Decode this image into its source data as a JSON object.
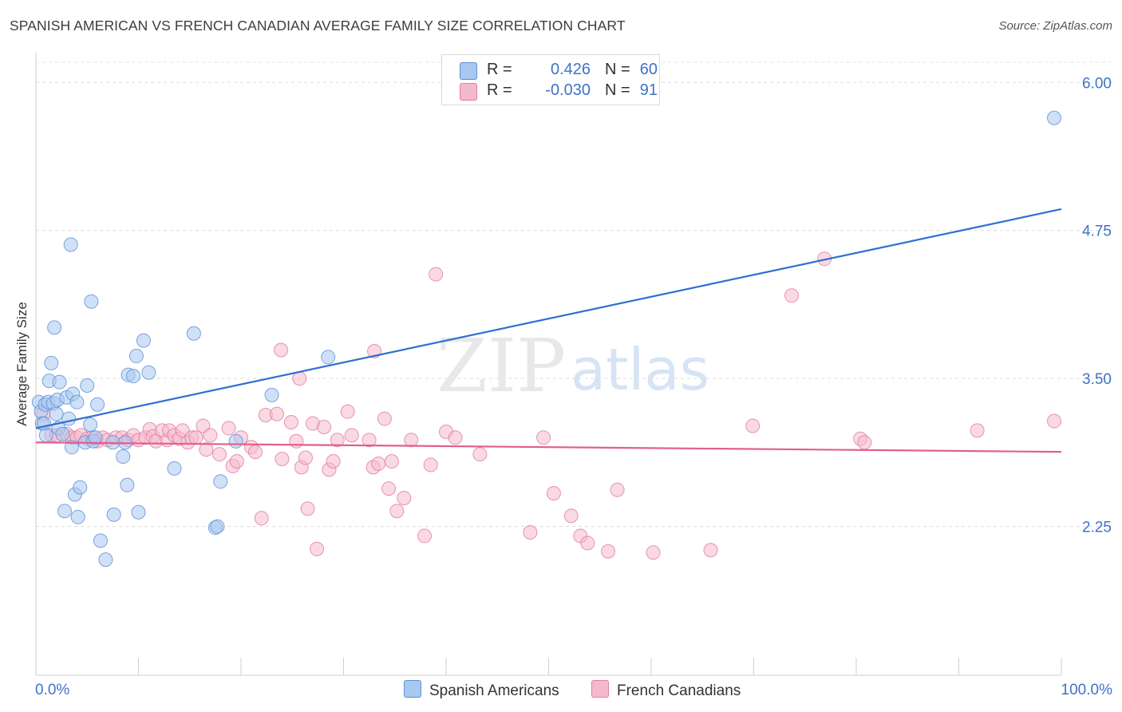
{
  "header": {
    "title": "SPANISH AMERICAN VS FRENCH CANADIAN AVERAGE FAMILY SIZE CORRELATION CHART",
    "source": "Source: ZipAtlas.com"
  },
  "watermark": {
    "zip": "ZIP",
    "atlas": "atlas"
  },
  "legend": {
    "r_label": "R =",
    "n_label": "N =",
    "rows": [
      {
        "r": "0.426",
        "n": "60",
        "color": "#a9c8f0"
      },
      {
        "r": "-0.030",
        "n": "91",
        "color": "#f5b9cc"
      }
    ]
  },
  "chart_data": {
    "type": "scatter",
    "title": "SPANISH AMERICAN VS FRENCH CANADIAN AVERAGE FAMILY SIZE CORRELATION CHART",
    "xlabel": "",
    "ylabel": "Average Family Size",
    "xlim": [
      0,
      100
    ],
    "ylim": [
      1.0,
      6.15
    ],
    "x_tick_labels": [
      "0.0%",
      "100.0%"
    ],
    "y_ticks": [
      2.25,
      3.5,
      4.75,
      6.0
    ],
    "y_tick_labels": [
      "2.25",
      "3.50",
      "4.75",
      "6.00"
    ],
    "grid": true,
    "legend_position": "top-center",
    "series": [
      {
        "name": "Spanish Americans",
        "color": "#5b8fd8",
        "fill": "#a9c8f0",
        "trend": {
          "x": [
            0,
            100
          ],
          "y": [
            3.08,
            4.93
          ]
        },
        "points": [
          [
            0.3,
            3.3
          ],
          [
            0.5,
            3.22
          ],
          [
            0.6,
            3.12
          ],
          [
            0.8,
            3.12
          ],
          [
            0.9,
            3.28
          ],
          [
            1.0,
            3.02
          ],
          [
            1.2,
            3.3
          ],
          [
            1.3,
            3.48
          ],
          [
            1.5,
            3.63
          ],
          [
            1.7,
            3.29
          ],
          [
            1.8,
            3.93
          ],
          [
            2.0,
            3.2
          ],
          [
            2.1,
            3.32
          ],
          [
            2.2,
            3.08
          ],
          [
            2.3,
            3.47
          ],
          [
            2.6,
            3.03
          ],
          [
            2.8,
            2.38
          ],
          [
            3.0,
            3.34
          ],
          [
            3.2,
            3.16
          ],
          [
            3.4,
            4.63
          ],
          [
            3.5,
            2.92
          ],
          [
            3.6,
            3.37
          ],
          [
            3.8,
            2.52
          ],
          [
            4.0,
            3.3
          ],
          [
            4.1,
            2.33
          ],
          [
            4.3,
            2.58
          ],
          [
            4.8,
            2.96
          ],
          [
            5.0,
            3.44
          ],
          [
            5.3,
            3.11
          ],
          [
            5.4,
            4.15
          ],
          [
            5.6,
            2.97
          ],
          [
            5.8,
            3.0
          ],
          [
            6.0,
            3.28
          ],
          [
            6.3,
            2.13
          ],
          [
            6.8,
            1.97
          ],
          [
            7.5,
            2.96
          ],
          [
            7.6,
            2.35
          ],
          [
            8.5,
            2.84
          ],
          [
            8.7,
            2.96
          ],
          [
            8.9,
            2.6
          ],
          [
            9.0,
            3.53
          ],
          [
            9.5,
            3.52
          ],
          [
            9.8,
            3.69
          ],
          [
            10.0,
            2.37
          ],
          [
            10.5,
            3.82
          ],
          [
            11.0,
            3.55
          ],
          [
            13.5,
            2.74
          ],
          [
            15.4,
            3.88
          ],
          [
            17.5,
            2.24
          ],
          [
            17.7,
            2.25
          ],
          [
            18.0,
            2.63
          ],
          [
            19.5,
            2.97
          ],
          [
            23.0,
            3.36
          ],
          [
            28.5,
            3.68
          ],
          [
            99.3,
            5.7
          ]
        ]
      },
      {
        "name": "French Canadians",
        "color": "#e07ca0",
        "fill": "#f5b9cc",
        "trend": {
          "x": [
            0,
            100
          ],
          "y": [
            2.96,
            2.88
          ]
        },
        "points": [
          [
            0.7,
            3.2
          ],
          [
            1.5,
            3.02
          ],
          [
            2.0,
            3.02
          ],
          [
            3.0,
            3.03
          ],
          [
            3.5,
            3.0
          ],
          [
            4.0,
            3.0
          ],
          [
            4.4,
            3.02
          ],
          [
            5.0,
            2.99
          ],
          [
            5.5,
            3.0
          ],
          [
            6.0,
            2.97
          ],
          [
            6.5,
            3.0
          ],
          [
            7.0,
            2.98
          ],
          [
            7.8,
            3.0
          ],
          [
            8.4,
            3.0
          ],
          [
            9.0,
            2.98
          ],
          [
            9.5,
            3.02
          ],
          [
            10.0,
            2.98
          ],
          [
            10.7,
            3.0
          ],
          [
            11.1,
            3.07
          ],
          [
            11.4,
            3.01
          ],
          [
            11.7,
            2.97
          ],
          [
            12.3,
            3.06
          ],
          [
            12.8,
            2.98
          ],
          [
            13.0,
            3.06
          ],
          [
            13.5,
            3.02
          ],
          [
            14.0,
            2.99
          ],
          [
            14.3,
            3.06
          ],
          [
            14.8,
            2.96
          ],
          [
            15.2,
            3.0
          ],
          [
            15.6,
            3.0
          ],
          [
            16.3,
            3.1
          ],
          [
            16.6,
            2.9
          ],
          [
            17.0,
            3.02
          ],
          [
            17.9,
            2.86
          ],
          [
            18.8,
            3.08
          ],
          [
            19.2,
            2.76
          ],
          [
            19.6,
            2.8
          ],
          [
            20.0,
            3.0
          ],
          [
            21.0,
            2.92
          ],
          [
            21.4,
            2.88
          ],
          [
            22.0,
            2.32
          ],
          [
            22.4,
            3.19
          ],
          [
            23.5,
            3.2
          ],
          [
            23.9,
            3.74
          ],
          [
            24.0,
            2.82
          ],
          [
            24.9,
            3.13
          ],
          [
            25.4,
            2.97
          ],
          [
            25.7,
            3.5
          ],
          [
            25.9,
            2.75
          ],
          [
            26.3,
            2.83
          ],
          [
            26.5,
            2.4
          ],
          [
            27.0,
            3.12
          ],
          [
            27.4,
            2.06
          ],
          [
            28.1,
            3.09
          ],
          [
            28.6,
            2.73
          ],
          [
            29.0,
            2.8
          ],
          [
            29.4,
            2.98
          ],
          [
            30.4,
            3.22
          ],
          [
            30.8,
            3.02
          ],
          [
            32.5,
            2.98
          ],
          [
            32.9,
            2.75
          ],
          [
            33.0,
            3.73
          ],
          [
            33.4,
            2.78
          ],
          [
            34.0,
            3.16
          ],
          [
            34.4,
            2.57
          ],
          [
            34.7,
            2.8
          ],
          [
            35.2,
            2.38
          ],
          [
            35.9,
            2.49
          ],
          [
            36.6,
            2.98
          ],
          [
            37.9,
            2.17
          ],
          [
            38.5,
            2.77
          ],
          [
            39.0,
            4.38
          ],
          [
            40.0,
            3.05
          ],
          [
            40.9,
            3.0
          ],
          [
            43.3,
            2.86
          ],
          [
            48.2,
            2.2
          ],
          [
            49.5,
            3.0
          ],
          [
            50.5,
            2.53
          ],
          [
            52.2,
            2.34
          ],
          [
            53.1,
            2.17
          ],
          [
            53.8,
            2.11
          ],
          [
            55.8,
            2.04
          ],
          [
            56.7,
            2.56
          ],
          [
            60.2,
            2.03
          ],
          [
            65.8,
            2.05
          ],
          [
            69.9,
            3.1
          ],
          [
            73.7,
            4.2
          ],
          [
            76.9,
            4.51
          ],
          [
            80.4,
            2.99
          ],
          [
            80.8,
            2.96
          ],
          [
            91.8,
            3.06
          ],
          [
            99.3,
            3.14
          ]
        ]
      }
    ]
  }
}
